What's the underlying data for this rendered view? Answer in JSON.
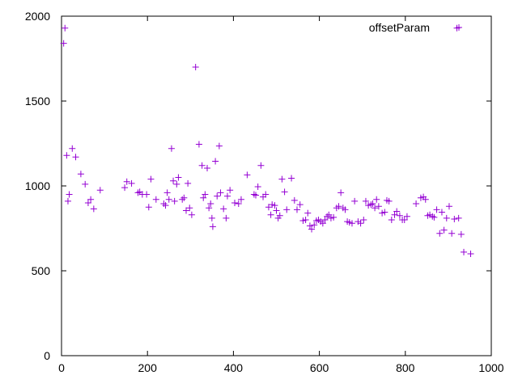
{
  "chart_data": {
    "type": "scatter",
    "title": "",
    "xlabel": "",
    "ylabel": "",
    "xlim": [
      0,
      1000
    ],
    "ylim": [
      0,
      2000
    ],
    "x_ticks": [
      "0",
      "200",
      "400",
      "600",
      "800",
      "1000"
    ],
    "y_ticks": [
      "0",
      "500",
      "1000",
      "1500",
      "2000"
    ],
    "grid": false,
    "legend_position": "top-right",
    "marker": "plus",
    "series": [
      {
        "name": "offsetParam",
        "color": "#9400d3",
        "points": [
          [
            5,
            1840
          ],
          [
            8,
            1930
          ],
          [
            12,
            1180
          ],
          [
            15,
            910
          ],
          [
            18,
            950
          ],
          [
            25,
            1220
          ],
          [
            33,
            1170
          ],
          [
            45,
            1070
          ],
          [
            55,
            1010
          ],
          [
            62,
            900
          ],
          [
            68,
            920
          ],
          [
            75,
            865
          ],
          [
            90,
            975
          ],
          [
            147,
            990
          ],
          [
            152,
            1025
          ],
          [
            163,
            1015
          ],
          [
            178,
            960
          ],
          [
            182,
            965
          ],
          [
            188,
            950
          ],
          [
            198,
            950
          ],
          [
            203,
            875
          ],
          [
            208,
            1040
          ],
          [
            220,
            920
          ],
          [
            238,
            895
          ],
          [
            242,
            885
          ],
          [
            246,
            960
          ],
          [
            250,
            920
          ],
          [
            256,
            1220
          ],
          [
            260,
            1030
          ],
          [
            263,
            910
          ],
          [
            268,
            1010
          ],
          [
            272,
            1050
          ],
          [
            281,
            920
          ],
          [
            285,
            930
          ],
          [
            290,
            855
          ],
          [
            294,
            1015
          ],
          [
            298,
            870
          ],
          [
            303,
            830
          ],
          [
            312,
            1700
          ],
          [
            320,
            1245
          ],
          [
            327,
            1120
          ],
          [
            330,
            930
          ],
          [
            334,
            950
          ],
          [
            339,
            1105
          ],
          [
            343,
            870
          ],
          [
            347,
            895
          ],
          [
            350,
            810
          ],
          [
            352,
            760
          ],
          [
            358,
            1145
          ],
          [
            362,
            940
          ],
          [
            367,
            1235
          ],
          [
            370,
            960
          ],
          [
            377,
            865
          ],
          [
            383,
            810
          ],
          [
            386,
            940
          ],
          [
            392,
            975
          ],
          [
            403,
            900
          ],
          [
            412,
            895
          ],
          [
            418,
            920
          ],
          [
            432,
            1065
          ],
          [
            448,
            950
          ],
          [
            452,
            945
          ],
          [
            457,
            995
          ],
          [
            464,
            1120
          ],
          [
            469,
            935
          ],
          [
            475,
            950
          ],
          [
            482,
            875
          ],
          [
            487,
            830
          ],
          [
            490,
            890
          ],
          [
            496,
            885
          ],
          [
            500,
            855
          ],
          [
            504,
            810
          ],
          [
            508,
            825
          ],
          [
            513,
            1040
          ],
          [
            519,
            965
          ],
          [
            524,
            860
          ],
          [
            535,
            1045
          ],
          [
            542,
            915
          ],
          [
            548,
            860
          ],
          [
            555,
            890
          ],
          [
            562,
            795
          ],
          [
            568,
            800
          ],
          [
            573,
            840
          ],
          [
            578,
            765
          ],
          [
            582,
            745
          ],
          [
            588,
            770
          ],
          [
            593,
            795
          ],
          [
            598,
            800
          ],
          [
            603,
            790
          ],
          [
            608,
            780
          ],
          [
            613,
            800
          ],
          [
            618,
            820
          ],
          [
            622,
            830
          ],
          [
            627,
            810
          ],
          [
            633,
            815
          ],
          [
            640,
            870
          ],
          [
            645,
            880
          ],
          [
            650,
            960
          ],
          [
            655,
            870
          ],
          [
            660,
            860
          ],
          [
            665,
            790
          ],
          [
            670,
            785
          ],
          [
            676,
            780
          ],
          [
            682,
            910
          ],
          [
            690,
            790
          ],
          [
            696,
            780
          ],
          [
            703,
            800
          ],
          [
            708,
            910
          ],
          [
            714,
            885
          ],
          [
            720,
            890
          ],
          [
            724,
            895
          ],
          [
            729,
            870
          ],
          [
            733,
            920
          ],
          [
            738,
            880
          ],
          [
            746,
            840
          ],
          [
            752,
            845
          ],
          [
            757,
            915
          ],
          [
            762,
            910
          ],
          [
            768,
            800
          ],
          [
            775,
            830
          ],
          [
            780,
            850
          ],
          [
            787,
            825
          ],
          [
            793,
            800
          ],
          [
            798,
            800
          ],
          [
            804,
            820
          ],
          [
            825,
            895
          ],
          [
            836,
            930
          ],
          [
            842,
            935
          ],
          [
            847,
            920
          ],
          [
            852,
            825
          ],
          [
            857,
            830
          ],
          [
            863,
            820
          ],
          [
            867,
            815
          ],
          [
            873,
            860
          ],
          [
            880,
            720
          ],
          [
            885,
            845
          ],
          [
            890,
            740
          ],
          [
            896,
            810
          ],
          [
            902,
            880
          ],
          [
            908,
            720
          ],
          [
            914,
            805
          ],
          [
            920,
            1930
          ],
          [
            924,
            810
          ],
          [
            930,
            715
          ],
          [
            936,
            610
          ],
          [
            952,
            600
          ]
        ]
      }
    ]
  }
}
